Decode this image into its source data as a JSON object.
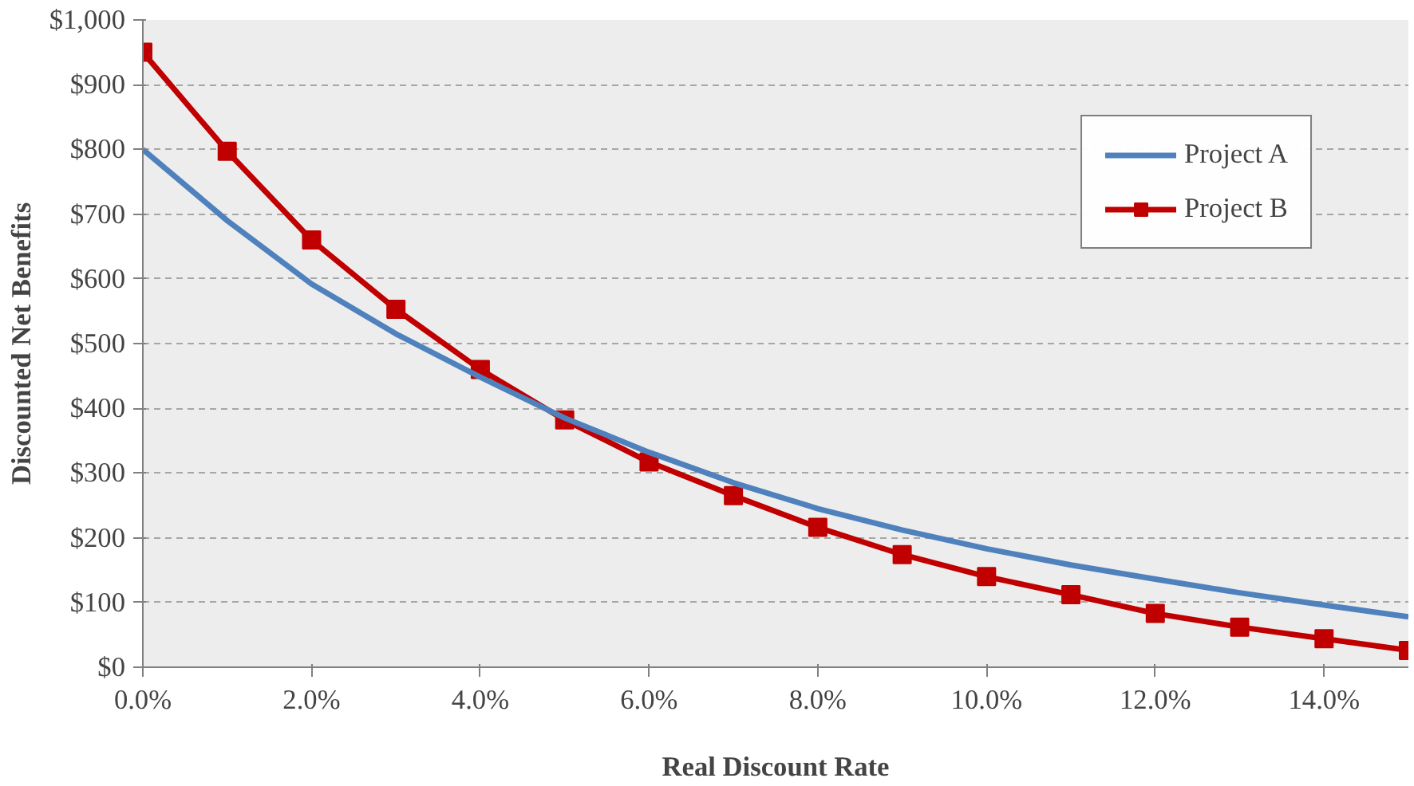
{
  "chart_data": {
    "type": "line",
    "xlabel": "Real Discount Rate",
    "ylabel": "Discounted Net Benefits",
    "x": [
      0,
      1,
      2,
      3,
      4,
      5,
      6,
      7,
      8,
      9,
      10,
      11,
      12,
      13,
      14,
      15
    ],
    "series": [
      {
        "name": "Project A",
        "color": "#4f81bd",
        "marker": "none",
        "values": [
          800,
          690,
          592,
          515,
          448,
          385,
          332,
          285,
          245,
          212,
          183,
          158,
          136,
          115,
          96,
          78
        ]
      },
      {
        "name": "Project B",
        "color": "#c00000",
        "marker": "square",
        "values": [
          950,
          797,
          660,
          553,
          460,
          382,
          317,
          265,
          216,
          174,
          140,
          112,
          83,
          62,
          44,
          26
        ]
      }
    ],
    "xlim": [
      0,
      15
    ],
    "ylim": [
      0,
      1000
    ],
    "xticks": [
      {
        "value": 0,
        "label": "0.0%"
      },
      {
        "value": 2,
        "label": "2.0%"
      },
      {
        "value": 4,
        "label": "4.0%"
      },
      {
        "value": 6,
        "label": "6.0%"
      },
      {
        "value": 8,
        "label": "8.0%"
      },
      {
        "value": 10,
        "label": "10.0%"
      },
      {
        "value": 12,
        "label": "12.0%"
      },
      {
        "value": 14,
        "label": "14.0%"
      }
    ],
    "yticks": [
      {
        "value": 0,
        "label": "$0"
      },
      {
        "value": 100,
        "label": "$100"
      },
      {
        "value": 200,
        "label": "$200"
      },
      {
        "value": 300,
        "label": "$300"
      },
      {
        "value": 400,
        "label": "$400"
      },
      {
        "value": 500,
        "label": "$500"
      },
      {
        "value": 600,
        "label": "$600"
      },
      {
        "value": 700,
        "label": "$700"
      },
      {
        "value": 800,
        "label": "$800"
      },
      {
        "value": 900,
        "label": "$900"
      },
      {
        "value": 1000,
        "label": "$1,000"
      }
    ],
    "grid": "y",
    "legend": "top right",
    "line_style": "solid"
  }
}
